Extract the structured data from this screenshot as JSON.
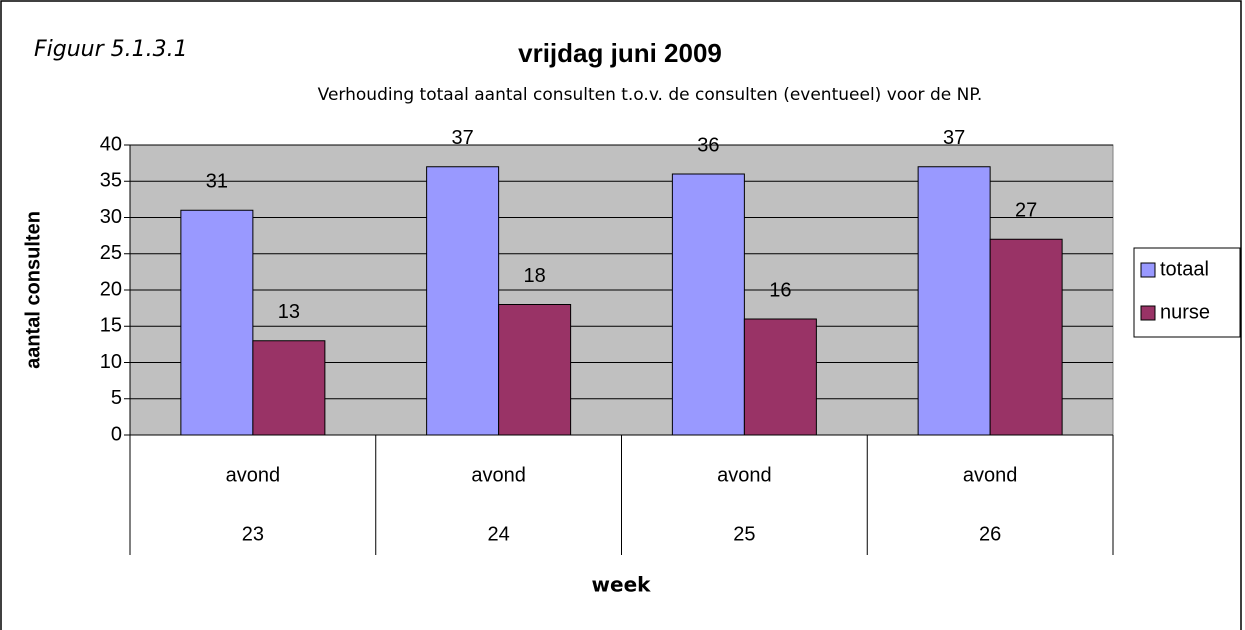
{
  "chart_data": {
    "type": "bar",
    "annotation": "Figuur 5.1.3.1",
    "title": "vrijdag juni 2009",
    "subtitle": "Verhouding totaal aantal consulten t.o.v. de consulten (eventueel) voor de NP.",
    "ylabel": "aantal consulten",
    "xlabel": "week",
    "categories": [
      "avond",
      "avond",
      "avond",
      "avond"
    ],
    "category_groups": [
      "23",
      "24",
      "25",
      "26"
    ],
    "series": [
      {
        "name": "totaal",
        "color": "#9999ff",
        "values": [
          31,
          37,
          36,
          37
        ]
      },
      {
        "name": "nurse",
        "color": "#993366",
        "values": [
          13,
          18,
          16,
          27
        ]
      }
    ],
    "ylim": [
      0,
      40
    ],
    "yticks": [
      0,
      5,
      10,
      15,
      20,
      25,
      30,
      35,
      40
    ],
    "grid": true,
    "plot_background": "#c0c0c0",
    "legend": "right"
  }
}
